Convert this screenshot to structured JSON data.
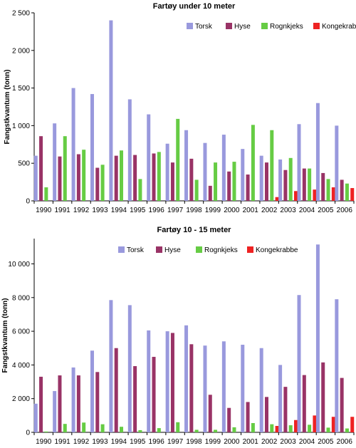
{
  "chart_data": [
    {
      "type": "bar",
      "title": "Fartøy under 10 meter",
      "xlabel": "",
      "ylabel": "Fangstkvantum (tonn)",
      "ylim": [
        0,
        2500
      ],
      "yticks": [
        0,
        500,
        1000,
        1500,
        2000,
        2500
      ],
      "ytick_labels": [
        "0",
        "500",
        "1 000",
        "1 500",
        "2 000",
        "2 500"
      ],
      "grid": false,
      "legend": "top-right",
      "categories": [
        "1990",
        "1991",
        "1992",
        "1993",
        "1994",
        "1995",
        "1996",
        "1997",
        "1998",
        "1999",
        "2000",
        "2001",
        "2002",
        "2003",
        "2004",
        "2005",
        "2006"
      ],
      "series": [
        {
          "name": "Torsk",
          "color": "#9999dd",
          "values": [
            600,
            1030,
            1500,
            1420,
            2400,
            1350,
            1150,
            760,
            940,
            770,
            880,
            690,
            600,
            550,
            1020,
            1300,
            1000
          ]
        },
        {
          "name": "Hyse",
          "color": "#993366",
          "values": [
            860,
            590,
            620,
            440,
            600,
            610,
            630,
            510,
            560,
            200,
            390,
            350,
            510,
            410,
            430,
            370,
            280
          ]
        },
        {
          "name": "Rognkjeks",
          "color": "#66cc44",
          "values": [
            180,
            860,
            680,
            480,
            670,
            290,
            650,
            1090,
            280,
            510,
            520,
            1010,
            940,
            570,
            430,
            290,
            230
          ]
        },
        {
          "name": "Kongekrabbe",
          "color": "#ee2222",
          "values": [
            0,
            0,
            0,
            0,
            0,
            0,
            0,
            0,
            0,
            0,
            0,
            0,
            50,
            130,
            150,
            180,
            170
          ]
        }
      ]
    },
    {
      "type": "bar",
      "title": "Fartøy 10 - 15 meter",
      "xlabel": "",
      "ylabel": "Fangstkvantum (tonn)",
      "ylim": [
        0,
        11500
      ],
      "yticks": [
        0,
        2000,
        4000,
        6000,
        8000,
        10000
      ],
      "ytick_labels": [
        "0",
        "2 000",
        "4 000",
        "6 000",
        "8 000",
        "10 000"
      ],
      "grid": false,
      "legend": "top-right",
      "categories": [
        "1990",
        "1991",
        "1992",
        "1993",
        "1994",
        "1995",
        "1996",
        "1997",
        "1998",
        "1999",
        "2000",
        "2001",
        "2002",
        "2003",
        "2004",
        "2005",
        "2006"
      ],
      "series": [
        {
          "name": "Torsk",
          "color": "#9999dd",
          "values": [
            1700,
            2450,
            3850,
            4850,
            7850,
            7550,
            6050,
            6000,
            6350,
            5150,
            5400,
            5200,
            5000,
            4000,
            8150,
            11150,
            7900
          ]
        },
        {
          "name": "Hyse",
          "color": "#993366",
          "values": [
            3300,
            3380,
            3380,
            3580,
            5000,
            3930,
            4480,
            5900,
            5230,
            2230,
            1450,
            1800,
            2100,
            2700,
            3400,
            4150,
            3230
          ]
        },
        {
          "name": "Rognkjeks",
          "color": "#66cc44",
          "values": [
            50,
            500,
            580,
            480,
            330,
            130,
            250,
            600,
            150,
            150,
            300,
            550,
            480,
            420,
            450,
            280,
            230
          ]
        },
        {
          "name": "Kongekrabbe",
          "color": "#ee2222",
          "values": [
            0,
            0,
            0,
            0,
            0,
            0,
            0,
            0,
            0,
            0,
            0,
            0,
            380,
            730,
            1000,
            920,
            920
          ]
        }
      ]
    }
  ]
}
